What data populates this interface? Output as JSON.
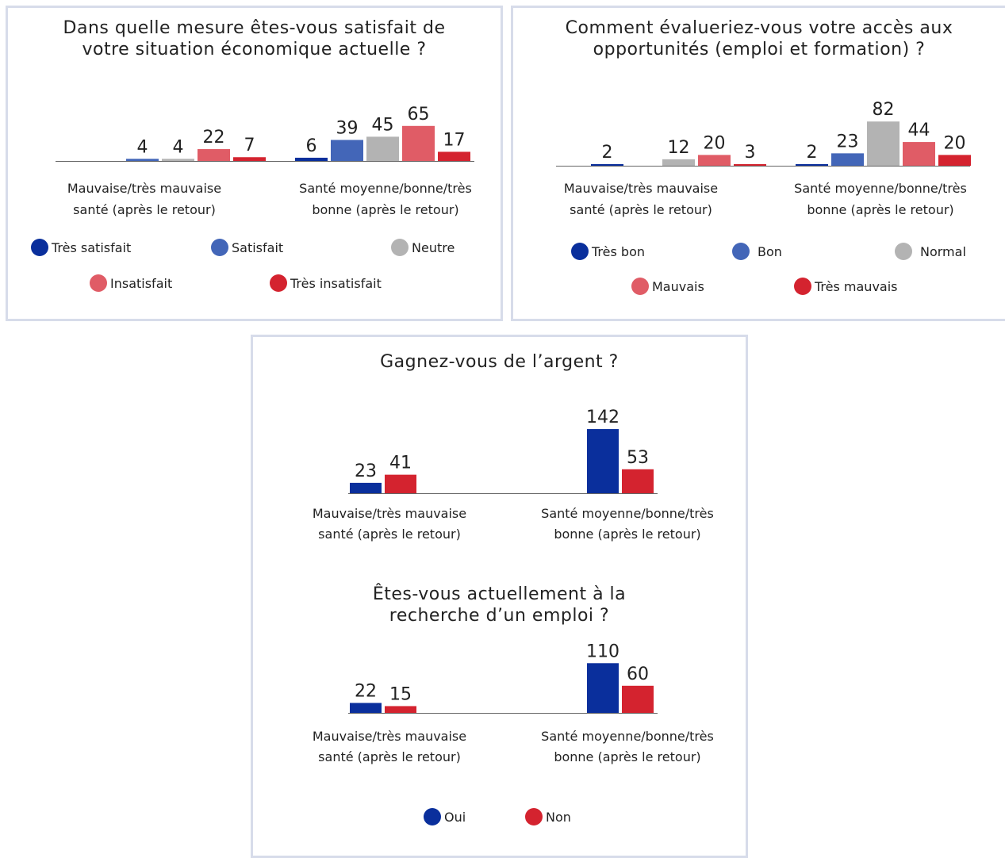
{
  "chart_data": [
    {
      "type": "bar",
      "title": "Dans quelle mesure êtes-vous satisfait de votre situation économique actuelle ?",
      "categories": [
        "Mauvaise/très mauvaise santé (après le retour)",
        "Santé moyenne/bonne/très bonne (après le retour)"
      ],
      "series": [
        {
          "name": "Très satisfait",
          "values": [
            0,
            6
          ],
          "color": "#0a2f9c"
        },
        {
          "name": "Satisfait",
          "values": [
            4,
            39
          ],
          "color": "#4366b8"
        },
        {
          "name": "Neutre",
          "values": [
            4,
            45
          ],
          "color": "#b3b3b3"
        },
        {
          "name": "Insatisfait",
          "values": [
            22,
            65
          ],
          "color": "#e05c66"
        },
        {
          "name": "Très insatisfait",
          "values": [
            7,
            17
          ],
          "color": "#d4232f"
        }
      ],
      "value_labels": [
        [
          null,
          "4",
          "4",
          "22",
          "7"
        ],
        [
          "6",
          "39",
          "45",
          "65",
          "17"
        ]
      ]
    },
    {
      "type": "bar",
      "title": "Comment évalueriez-vous votre accès aux opportunités (emploi et formation) ?",
      "categories": [
        "Mauvaise/très mauvaise santé (après le retour)",
        "Santé moyenne/bonne/très bonne (après le retour)"
      ],
      "series": [
        {
          "name": "Très bon",
          "values": [
            2,
            2
          ],
          "color": "#0a2f9c"
        },
        {
          "name": "Bon",
          "values": [
            0,
            23
          ],
          "color": "#4366b8"
        },
        {
          "name": "Normal",
          "values": [
            12,
            82
          ],
          "color": "#b3b3b3"
        },
        {
          "name": "Mauvais",
          "values": [
            20,
            44
          ],
          "color": "#e05c66"
        },
        {
          "name": "Très mauvais",
          "values": [
            3,
            20
          ],
          "color": "#d4232f"
        }
      ],
      "value_labels": [
        [
          "2",
          null,
          "12",
          "20",
          "3"
        ],
        [
          "2",
          "23",
          "82",
          "44",
          "20"
        ]
      ]
    },
    {
      "type": "bar",
      "title": "Gagnez-vous de l’argent ?",
      "categories": [
        "Mauvaise/très mauvaise santé (après le retour)",
        "Santé moyenne/bonne/très bonne (après le retour)"
      ],
      "series": [
        {
          "name": "Oui",
          "values": [
            23,
            142
          ],
          "color": "#0a2f9c"
        },
        {
          "name": "Non",
          "values": [
            41,
            53
          ],
          "color": "#d4232f"
        }
      ],
      "value_labels": [
        [
          "23",
          "41"
        ],
        [
          "142",
          "53"
        ]
      ]
    },
    {
      "type": "bar",
      "title": "Êtes-vous actuellement à la recherche d’un emploi ?",
      "categories": [
        "Mauvaise/très mauvaise santé (après le retour)",
        "Santé moyenne/bonne/très bonne (après le retour)"
      ],
      "series": [
        {
          "name": "Oui",
          "values": [
            22,
            110
          ],
          "color": "#0a2f9c"
        },
        {
          "name": "Non",
          "values": [
            15,
            60
          ],
          "color": "#d4232f"
        }
      ],
      "value_labels": [
        [
          "22",
          "15"
        ],
        [
          "110",
          "60"
        ]
      ]
    }
  ],
  "titles": {
    "c1_line1": "Dans quelle mesure êtes-vous satisfait de",
    "c1_line2": "votre situation économique actuelle ?",
    "c2_line1": "Comment évalueriez-vous votre accès aux",
    "c2_line2": "opportunités (emploi et formation) ?",
    "c3_line1": "Gagnez-vous de l’argent ?",
    "c4_line1": "Êtes-vous actuellement à la",
    "c4_line2": "recherche d’un emploi ?"
  },
  "categories": {
    "cat1_line1": "Mauvaise/très mauvaise",
    "cat1_line2": "santé (après le retour)",
    "cat2_line1": "Santé moyenne/bonne/très",
    "cat2_line2": "bonne (après le retour)"
  },
  "legend1": [
    "Très satisfait",
    "Satisfait",
    "Neutre",
    "Insatisfait",
    "Très insatisfait"
  ],
  "legend2": [
    "Très bon",
    "Bon",
    "Normal",
    "Mauvais",
    "Très mauvais"
  ],
  "legend3": [
    "Oui",
    "Non"
  ],
  "colors": {
    "dark_blue": "#0a2f9c",
    "mid_blue": "#4366b8",
    "grey": "#b3b3b3",
    "pink": "#e05c66",
    "red": "#d4232f",
    "panel_border": "#d7dcea"
  }
}
